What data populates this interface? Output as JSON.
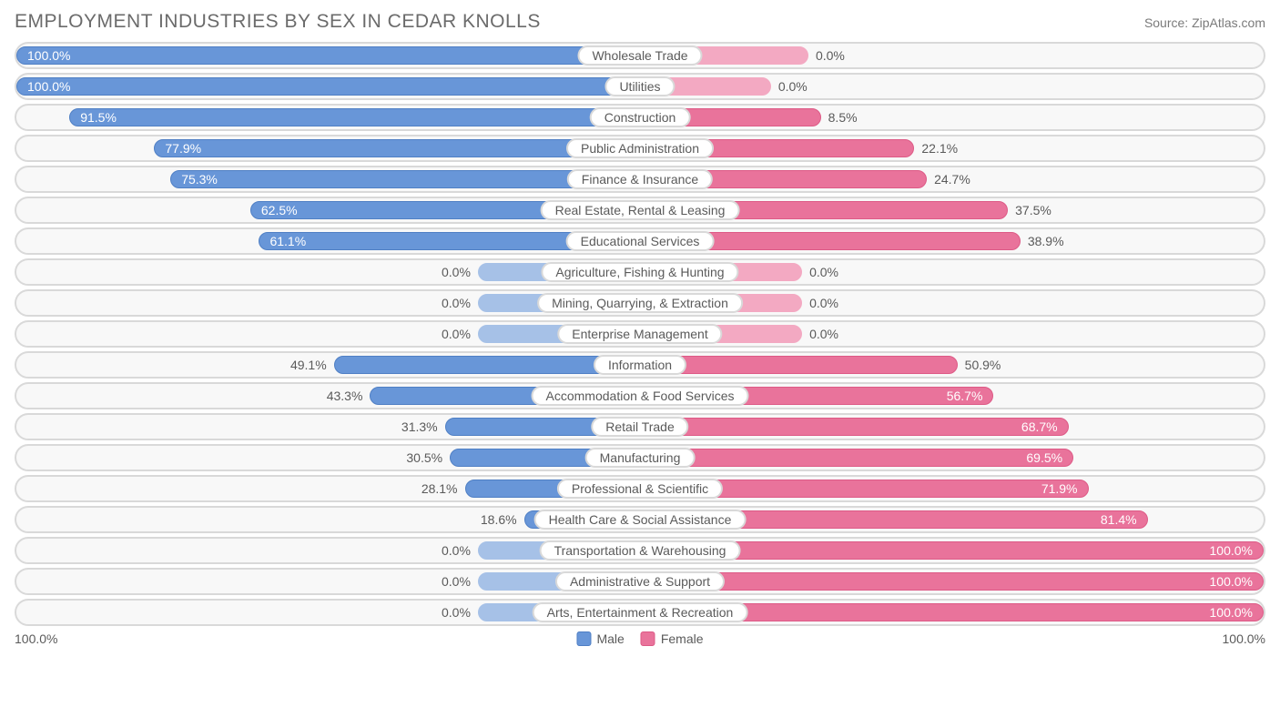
{
  "title": "EMPLOYMENT INDUSTRIES BY SEX IN CEDAR KNOLLS",
  "source": "Source: ZipAtlas.com",
  "axis": {
    "left": "100.0%",
    "right": "100.0%"
  },
  "legend": {
    "male": "Male",
    "female": "Female"
  },
  "colors": {
    "male_fill": "#6896d8",
    "male_border": "#4f7fc4",
    "male_light": "#a6c1e7",
    "female_fill": "#e9739b",
    "female_border": "#dd5a86",
    "female_light": "#f3a9c2",
    "track_border": "#d9d9d9",
    "track_bg": "#f8f8f8",
    "text": "#5a5a5a",
    "title_text": "#6b6b6b",
    "bg": "#ffffff"
  },
  "chart": {
    "type": "diverging-bar",
    "min_bar_pct": 11,
    "rows": [
      {
        "label": "Wholesale Trade",
        "male": 100.0,
        "female": 0.0,
        "female_extend": 27
      },
      {
        "label": "Utilities",
        "male": 100.0,
        "female": 0.0,
        "female_extend": 21
      },
      {
        "label": "Construction",
        "male": 91.5,
        "female": 8.5,
        "female_extend": 29
      },
      {
        "label": "Public Administration",
        "male": 77.9,
        "female": 22.1,
        "female_extend": 44
      },
      {
        "label": "Finance & Insurance",
        "male": 75.3,
        "female": 24.7,
        "female_extend": 46
      },
      {
        "label": "Real Estate, Rental & Leasing",
        "male": 62.5,
        "female": 37.5,
        "female_extend": 59
      },
      {
        "label": "Educational Services",
        "male": 61.1,
        "female": 38.9,
        "female_extend": 61
      },
      {
        "label": "Agriculture, Fishing & Hunting",
        "male": 0.0,
        "female": 0.0,
        "male_extend": 26,
        "female_extend": 26
      },
      {
        "label": "Mining, Quarrying, & Extraction",
        "male": 0.0,
        "female": 0.0,
        "male_extend": 26,
        "female_extend": 26
      },
      {
        "label": "Enterprise Management",
        "male": 0.0,
        "female": 0.0,
        "male_extend": 26,
        "female_extend": 26
      },
      {
        "label": "Information",
        "male": 49.1,
        "female": 50.9
      },
      {
        "label": "Accommodation & Food Services",
        "male": 43.3,
        "female": 56.7
      },
      {
        "label": "Retail Trade",
        "male": 31.3,
        "female": 68.7
      },
      {
        "label": "Manufacturing",
        "male": 30.5,
        "female": 69.5
      },
      {
        "label": "Professional & Scientific",
        "male": 28.1,
        "female": 71.9
      },
      {
        "label": "Health Care & Social Assistance",
        "male": 18.6,
        "female": 81.4
      },
      {
        "label": "Transportation & Warehousing",
        "male": 0.0,
        "female": 100.0,
        "male_extend": 26
      },
      {
        "label": "Administrative & Support",
        "male": 0.0,
        "female": 100.0,
        "male_extend": 26
      },
      {
        "label": "Arts, Entertainment & Recreation",
        "male": 0.0,
        "female": 100.0,
        "male_extend": 26
      }
    ]
  }
}
